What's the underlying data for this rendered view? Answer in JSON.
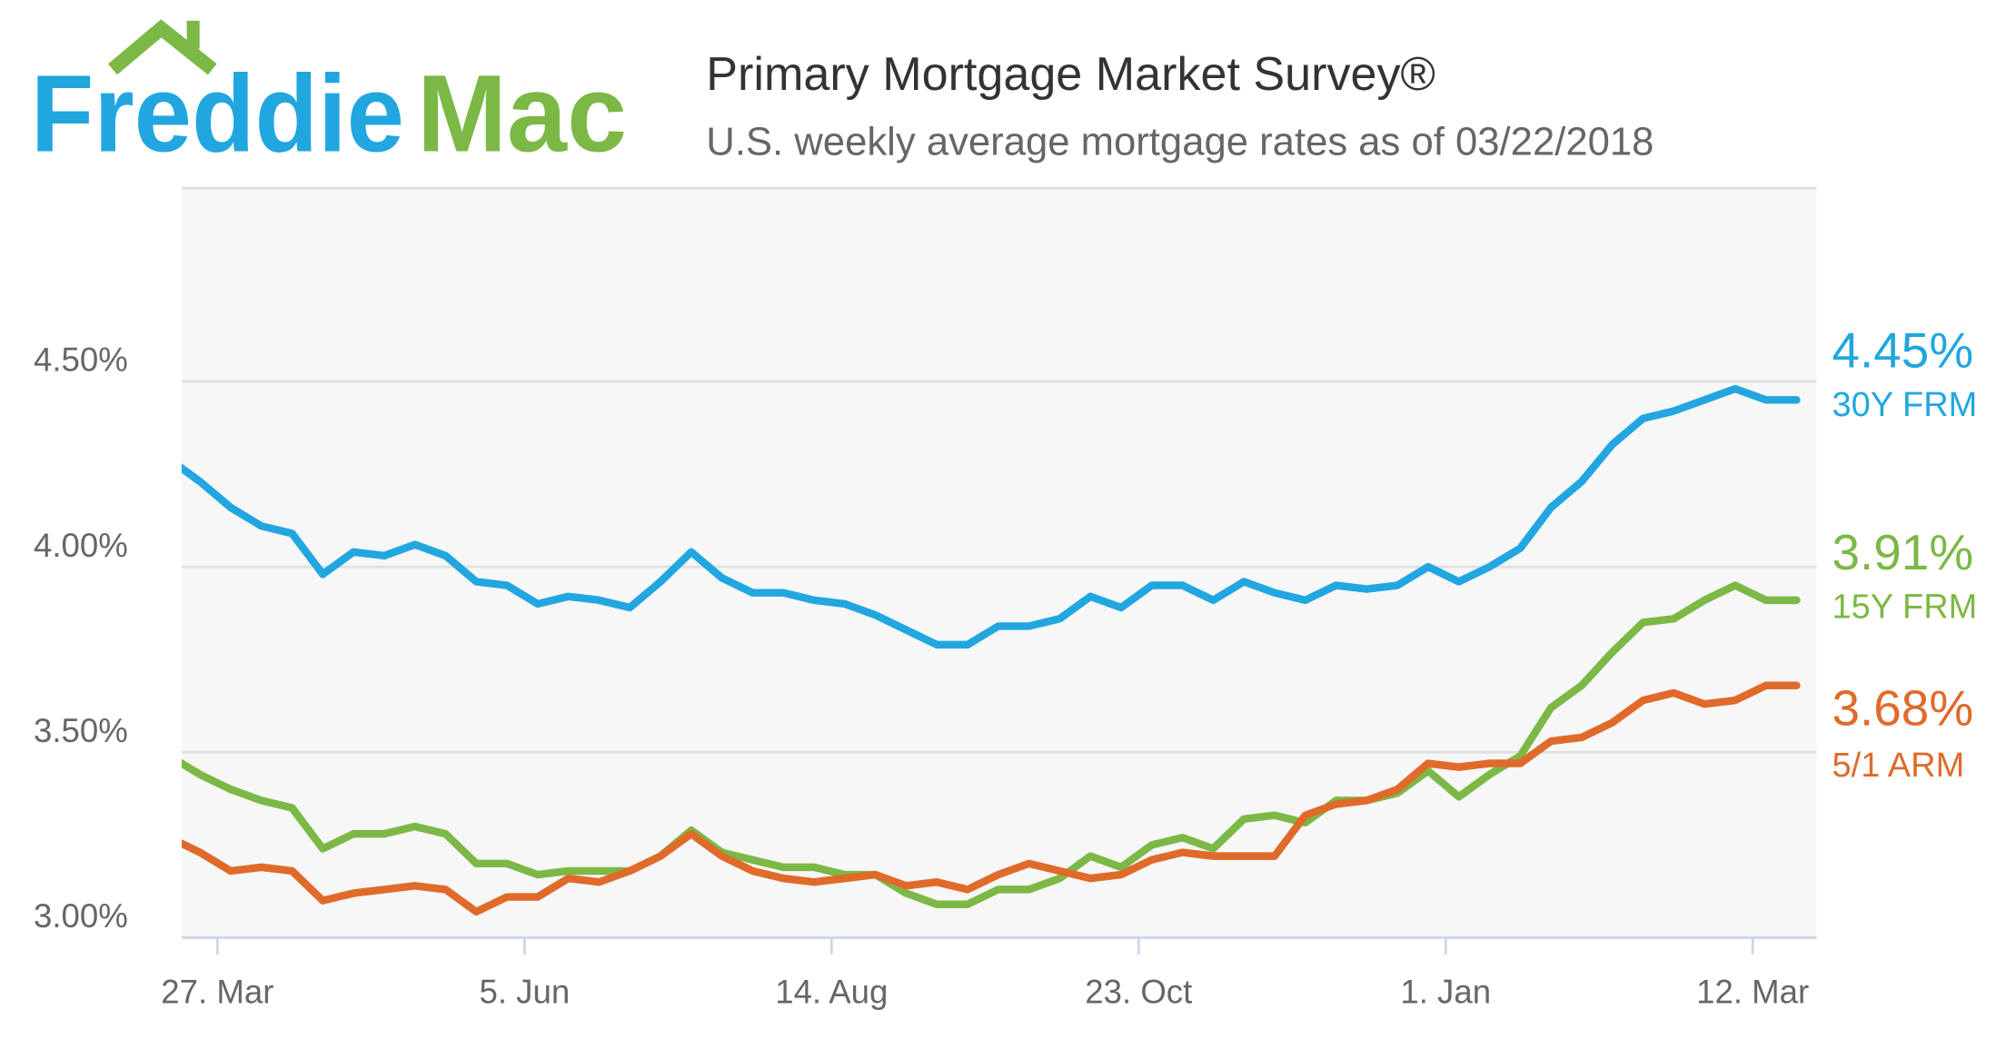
{
  "logo": {
    "part1": "Freddie",
    "part2": "Mac"
  },
  "chart_data": {
    "type": "line",
    "title": "Primary Mortgage Market Survey®",
    "subtitle": "U.S. weekly average mortgage rates as of 03/22/2018",
    "xlabel": "",
    "ylabel": "",
    "x_start": "2017-03-16",
    "x_step_days": 7,
    "ylim": [
      3.0,
      5.0
    ],
    "y_ticks": [
      {
        "value": 3.0,
        "label": "3.00%"
      },
      {
        "value": 3.5,
        "label": "3.50%"
      },
      {
        "value": 4.0,
        "label": "4.00%"
      },
      {
        "value": 4.5,
        "label": "4.50%"
      }
    ],
    "x_ticks": [
      {
        "date": "2017-03-27",
        "label": "27. Mar"
      },
      {
        "date": "2017-06-05",
        "label": "5. Jun"
      },
      {
        "date": "2017-08-14",
        "label": "14. Aug"
      },
      {
        "date": "2017-10-23",
        "label": "23. Oct"
      },
      {
        "date": "2018-01-01",
        "label": "1. Jan"
      },
      {
        "date": "2018-03-12",
        "label": "12. Mar"
      }
    ],
    "grid": true,
    "legend": "right",
    "series": [
      {
        "name": "30Y FRM",
        "latest_label": "4.45%",
        "color": "#22a6e0",
        "values": [
          4.29,
          4.23,
          4.16,
          4.11,
          4.09,
          3.98,
          4.04,
          4.03,
          4.06,
          4.03,
          3.96,
          3.95,
          3.9,
          3.92,
          3.91,
          3.89,
          3.96,
          4.04,
          3.97,
          3.93,
          3.93,
          3.91,
          3.9,
          3.87,
          3.83,
          3.79,
          3.79,
          3.84,
          3.84,
          3.86,
          3.92,
          3.89,
          3.95,
          3.95,
          3.91,
          3.96,
          3.93,
          3.91,
          3.95,
          3.94,
          3.95,
          4.0,
          3.96,
          4.0,
          4.05,
          4.16,
          4.23,
          4.33,
          4.4,
          4.42,
          4.45,
          4.48,
          4.45,
          4.45
        ]
      },
      {
        "name": "15Y FRM",
        "latest_label": "3.91%",
        "color": "#7cb846",
        "values": [
          3.49,
          3.44,
          3.4,
          3.37,
          3.35,
          3.24,
          3.28,
          3.28,
          3.3,
          3.28,
          3.2,
          3.2,
          3.17,
          3.18,
          3.18,
          3.18,
          3.22,
          3.29,
          3.23,
          3.21,
          3.19,
          3.19,
          3.17,
          3.17,
          3.12,
          3.09,
          3.09,
          3.13,
          3.13,
          3.16,
          3.22,
          3.19,
          3.25,
          3.27,
          3.24,
          3.32,
          3.33,
          3.31,
          3.37,
          3.37,
          3.39,
          3.45,
          3.38,
          3.44,
          3.49,
          3.62,
          3.68,
          3.77,
          3.85,
          3.86,
          3.91,
          3.95,
          3.91,
          3.91
        ]
      },
      {
        "name": "5/1 ARM",
        "latest_label": "3.68%",
        "color": "#e06a2a",
        "values": [
          3.27,
          3.23,
          3.18,
          3.19,
          3.18,
          3.1,
          3.12,
          3.13,
          3.14,
          3.13,
          3.07,
          3.11,
          3.11,
          3.16,
          3.15,
          3.18,
          3.22,
          3.28,
          3.22,
          3.18,
          3.16,
          3.15,
          3.16,
          3.17,
          3.14,
          3.15,
          3.13,
          3.17,
          3.2,
          3.18,
          3.16,
          3.17,
          3.21,
          3.23,
          3.22,
          3.22,
          3.22,
          3.33,
          3.36,
          3.37,
          3.4,
          3.47,
          3.46,
          3.47,
          3.47,
          3.53,
          3.54,
          3.58,
          3.64,
          3.66,
          3.63,
          3.64,
          3.68,
          3.68
        ]
      }
    ]
  }
}
